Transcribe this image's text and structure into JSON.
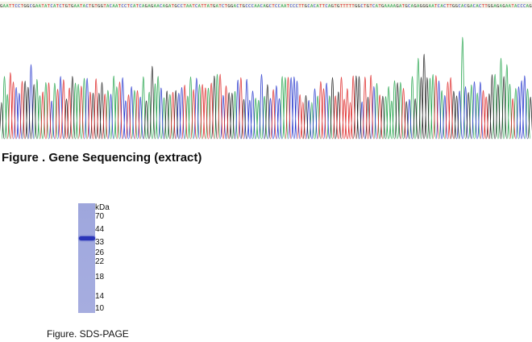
{
  "figure1": {
    "caption": "Figure . Gene Sequencing (extract)",
    "sequence": "GAATTCCTGGCGAATATCATCTGTGAATACTGTGGTACAATCCTCATCAGAGAACAGATGCCTAATCATTATGATCTGGACTGCCCAACAGCTCCAATCCCTTGCACATTCAGTGTTTTTGGCTGTCATGAAAAGATGCAGAGGGAATCACTTGGCACGACACTTGGAGAGAATACCCAG",
    "trace_colors": {
      "A": "#22a34a",
      "C": "#2233cc",
      "G": "#222222",
      "T": "#dd2222"
    }
  },
  "gel": {
    "unit_label": "kDa",
    "markers": [
      70,
      44,
      33,
      26,
      22,
      18,
      14,
      10
    ],
    "band_marker_kda": 38,
    "lane_color": "#a2aadf",
    "band_color": "#2a35b8"
  },
  "figure2": {
    "caption": "Figure. SDS-PAGE"
  }
}
